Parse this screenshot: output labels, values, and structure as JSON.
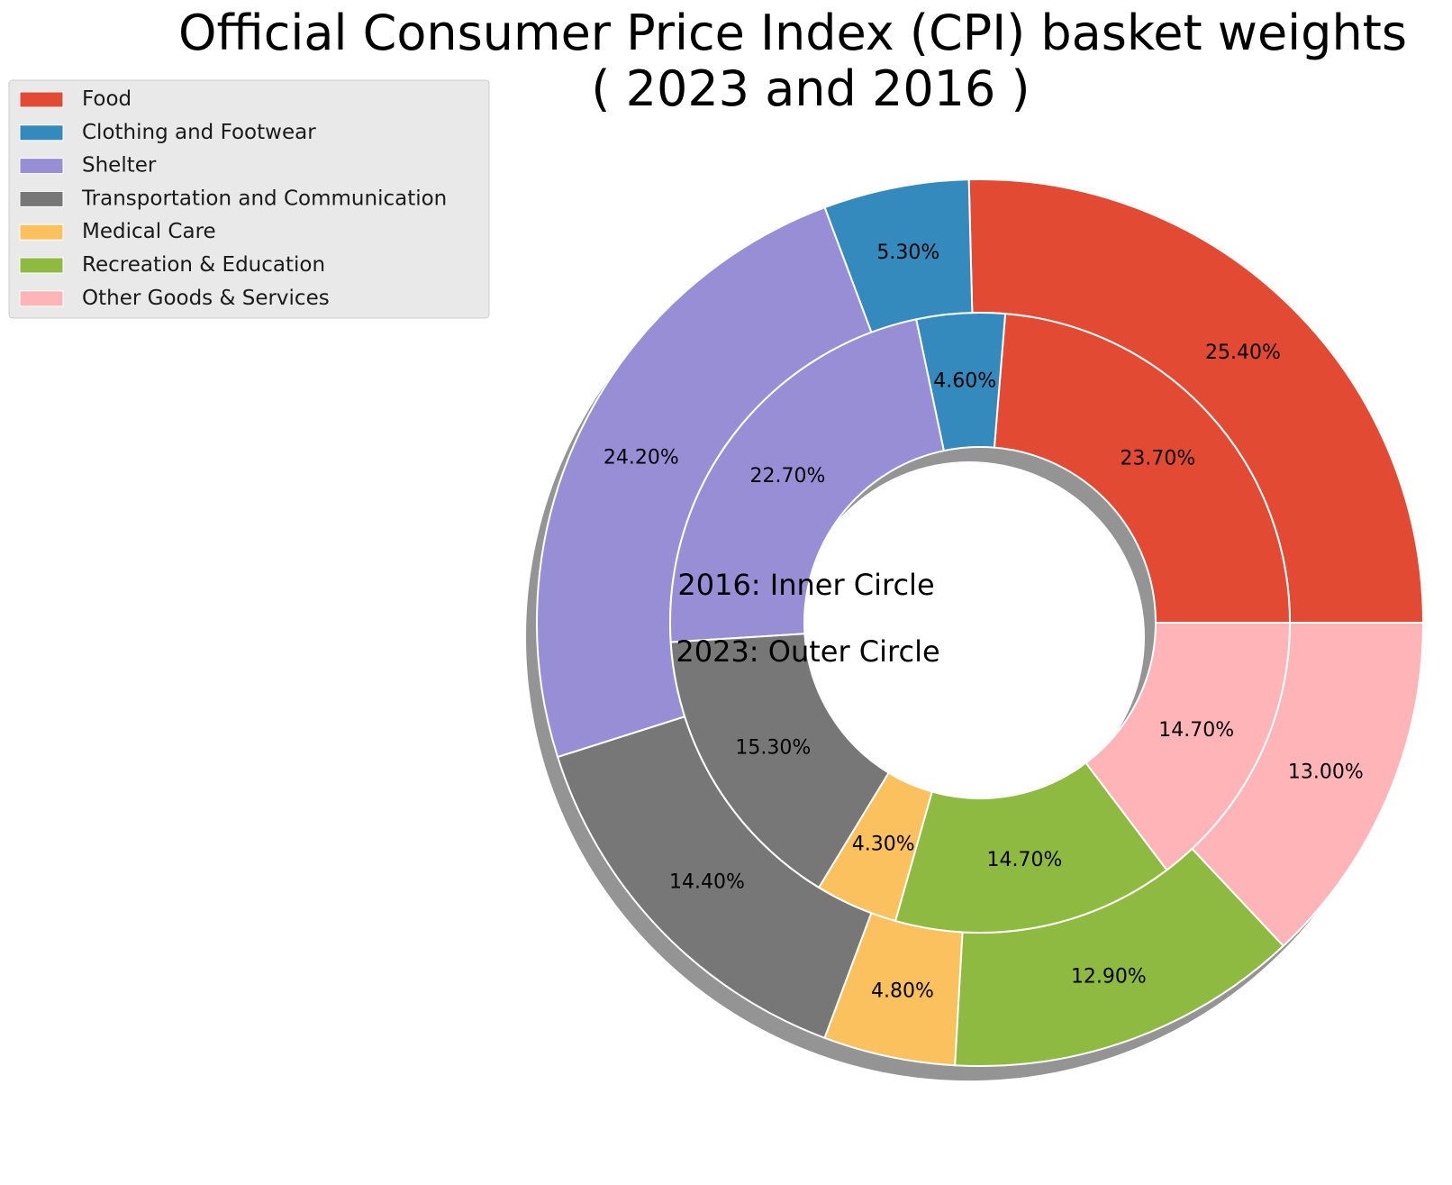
{
  "chart_data": {
    "type": "pie",
    "variant": "nested-donut",
    "title_lines": [
      "Official Consumer Price Index (CPI) basket weights",
      "( 2023 and 2016 )"
    ],
    "categories": [
      "Food",
      "Clothing and Footwear",
      "Shelter",
      "Transportation and Communication",
      "Medical Care",
      "Recreation & Education",
      "Other Goods & Services"
    ],
    "colors": [
      "#E24A33",
      "#348ABD",
      "#988ED5",
      "#777777",
      "#FBC15E",
      "#8EBA42",
      "#FFB5B8"
    ],
    "series": [
      {
        "ring": "outer",
        "values": [
          25.4,
          5.3,
          24.2,
          14.4,
          4.8,
          12.9,
          13.0
        ],
        "labels": [
          "25.40%",
          "5.30%",
          "24.20%",
          "14.40%",
          "4.80%",
          "12.90%",
          "13.00%"
        ]
      },
      {
        "ring": "inner",
        "values": [
          23.7,
          4.6,
          22.7,
          15.3,
          4.3,
          14.7,
          14.7
        ],
        "labels": [
          "23.70%",
          "4.60%",
          "22.70%",
          "15.30%",
          "4.30%",
          "14.70%",
          "14.70%"
        ]
      }
    ],
    "center_text": [
      "2016: Inner Circle",
      "2023: Outer Circle"
    ],
    "legend_position": "top-left",
    "start_angle_deg": 0,
    "direction": "counterclockwise",
    "shadow": true
  }
}
